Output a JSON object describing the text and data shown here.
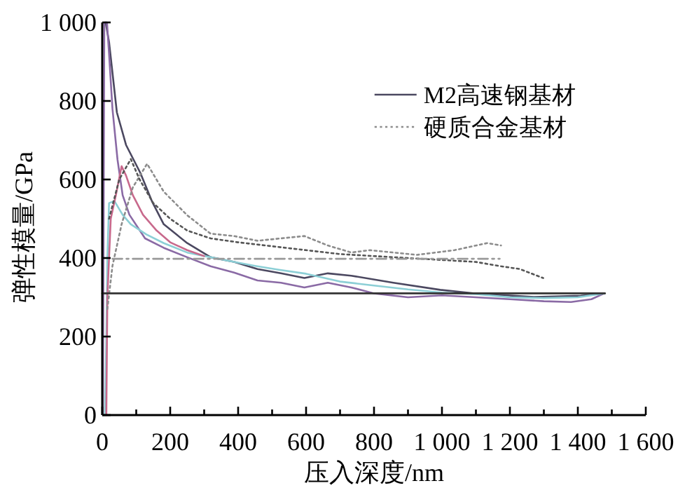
{
  "chart_data": {
    "type": "line",
    "xlabel": "压入深度/nm",
    "ylabel": "弹性模量/GPa",
    "xlim": [
      0,
      1600
    ],
    "ylim": [
      0,
      1000
    ],
    "xticks": [
      0,
      {
        "value": 100,
        "label": null
      },
      200,
      {
        "value": 300,
        "label": null
      },
      400,
      {
        "value": 500,
        "label": null
      },
      600,
      {
        "value": 700,
        "label": null
      },
      800,
      {
        "value": 900,
        "label": null
      },
      {
        "value": 1000,
        "label": "1 000"
      },
      {
        "value": 1100,
        "label": null
      },
      {
        "value": 1200,
        "label": "1 200"
      },
      {
        "value": 1300,
        "label": null
      },
      {
        "value": 1400,
        "label": "1 400"
      },
      {
        "value": 1500,
        "label": null
      },
      {
        "value": 1600,
        "label": "1 600"
      }
    ],
    "yticks": [
      0,
      200,
      400,
      600,
      800,
      {
        "value": 1000,
        "label": "1 000"
      }
    ],
    "legend": "top right",
    "grid": false,
    "series": [
      {
        "name": "M2高速钢基材",
        "color": "#4b4860",
        "line_style": "solid",
        "x": [
          10,
          20,
          43,
          70,
          112,
          146,
          181,
          250,
          319,
          388,
          457,
          526,
          595,
          664,
          733,
          857,
          995,
          1092,
          1271,
          1409,
          1478
        ],
        "values": [
          1000,
          950,
          771,
          688,
          617,
          545,
          486,
          438,
          402,
          390,
          372,
          361,
          349,
          361,
          355,
          337,
          319,
          310,
          301,
          304,
          310
        ]
      },
      {
        "color": "#8a6aa5",
        "line_style": "solid",
        "x": [
          2,
          4,
          6,
          14,
          20,
          30,
          45,
          60,
          80,
          126,
          181,
          250,
          319,
          388,
          457,
          526,
          595,
          664,
          733,
          800,
          900,
          1000,
          1100,
          1200,
          1300,
          1380,
          1440,
          1478
        ],
        "values": [
          0,
          500,
          1000,
          1000,
          920,
          780,
          650,
          560,
          510,
          450,
          426,
          402,
          379,
          363,
          343,
          337,
          325,
          337,
          325,
          310,
          300,
          305,
          300,
          295,
          290,
          288,
          295,
          310
        ]
      },
      {
        "color": "#8ccfd6",
        "line_style": "solid",
        "x": [
          8,
          12,
          15,
          20,
          36,
          60,
          84,
          130,
          181,
          250,
          319,
          388,
          450,
          520,
          600,
          700,
          800,
          900,
          1000,
          1100,
          1200,
          1300,
          1400,
          1478
        ],
        "values": [
          0,
          200,
          400,
          540,
          545,
          510,
          486,
          460,
          438,
          414,
          402,
          390,
          380,
          370,
          360,
          340,
          330,
          320,
          312,
          308,
          300,
          298,
          300,
          310
        ]
      },
      {
        "color": "#c8698c",
        "line_style": "solid",
        "x": [
          12,
          15,
          25,
          40,
          57,
          70,
          90,
          120,
          160,
          200,
          250,
          300
        ],
        "values": [
          0,
          300,
          500,
          560,
          634,
          610,
          560,
          510,
          470,
          440,
          420,
          405
        ]
      },
      {
        "name": "硬质合金基材",
        "color": "#8c8c8c",
        "line_style": "dotted",
        "x": [
          15,
          30,
          57,
          90,
          132,
          181,
          250,
          319,
          388,
          457,
          526,
          595,
          664,
          733,
          788,
          926,
          1037,
          1133,
          1174
        ],
        "values": [
          270,
          380,
          486,
          580,
          640,
          569,
          509,
          462,
          456,
          444,
          450,
          456,
          432,
          414,
          420,
          408,
          420,
          438,
          432
        ]
      },
      {
        "color": "#555555",
        "line_style": "dotted",
        "x": [
          20,
          50,
          84,
          110,
          150,
          200,
          250,
          319,
          400,
          500,
          600,
          700,
          800,
          900,
          1000,
          1100,
          1174,
          1229,
          1298
        ],
        "values": [
          500,
          600,
          652,
          600,
          540,
          500,
          470,
          450,
          440,
          430,
          420,
          410,
          405,
          400,
          395,
          390,
          379,
          372,
          349
        ]
      },
      {
        "color": "#333333",
        "line_style": "solid",
        "x": [
          0,
          1480
        ],
        "values": [
          310,
          310
        ]
      },
      {
        "color": "#999999",
        "line_style": "dashed",
        "x": [
          30,
          1170
        ],
        "values": [
          398,
          398
        ]
      }
    ]
  }
}
